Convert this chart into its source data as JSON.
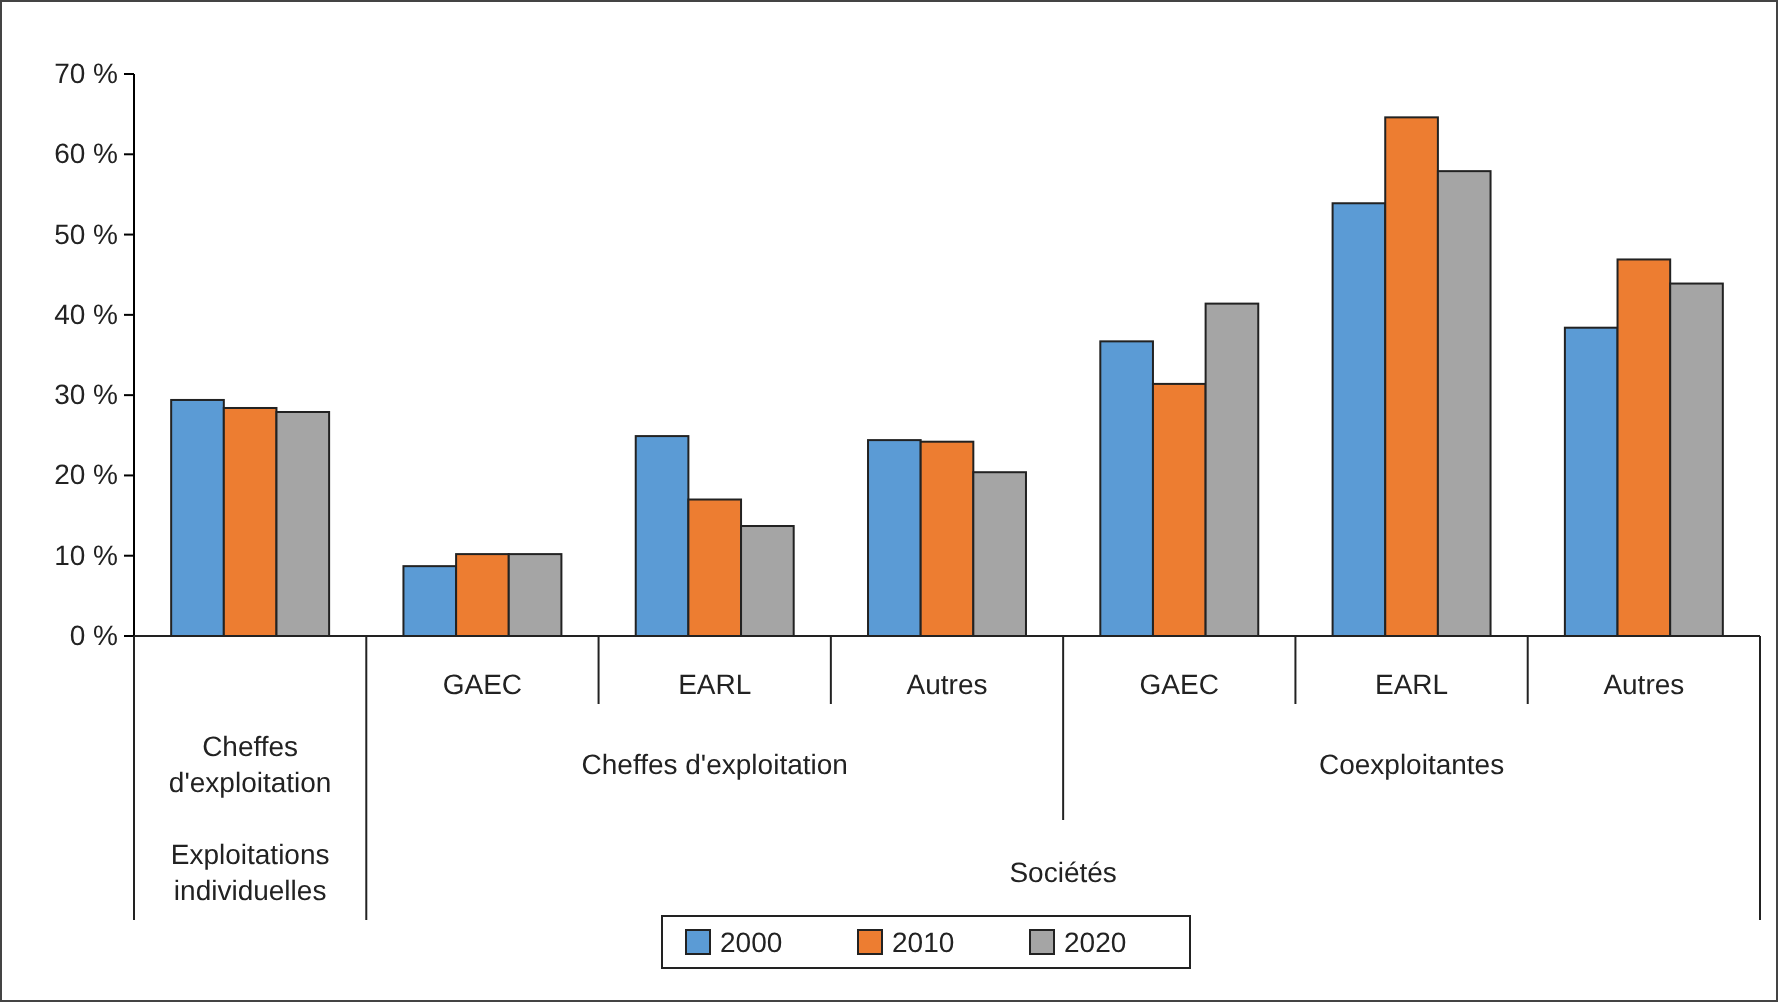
{
  "chart_data": {
    "type": "bar",
    "categories": [
      null,
      "GAEC",
      "EARL",
      "Autres",
      "GAEC",
      "EARL",
      "Autres"
    ],
    "series": [
      {
        "name": "2000",
        "color": "#5b9bd5",
        "values": [
          29.4,
          8.7,
          24.9,
          24.4,
          36.7,
          53.9,
          38.4
        ]
      },
      {
        "name": "2010",
        "color": "#ed7d31",
        "values": [
          28.4,
          10.2,
          17.0,
          24.2,
          31.4,
          64.6,
          46.9
        ]
      },
      {
        "name": "2020",
        "color": "#a5a5a5",
        "values": [
          27.9,
          10.2,
          13.7,
          20.4,
          41.4,
          57.9,
          43.9
        ]
      }
    ],
    "ylim": [
      0,
      70
    ],
    "yticks": [
      {
        "value": 0,
        "label": "0 %"
      },
      {
        "value": 10,
        "label": "10 %"
      },
      {
        "value": 20,
        "label": "20 %"
      },
      {
        "value": 30,
        "label": "30 %"
      },
      {
        "value": 40,
        "label": "40 %"
      },
      {
        "value": 50,
        "label": "50 %"
      },
      {
        "value": 60,
        "label": "60 %"
      },
      {
        "value": 70,
        "label": "70 %"
      }
    ],
    "annotations": [
      "Cheffes d'exploitation",
      "Cheffes d'exploitation",
      "Coexploitantes",
      "Exploitations individuelles",
      "Sociétés"
    ],
    "grid": false,
    "legend": "bottom"
  }
}
